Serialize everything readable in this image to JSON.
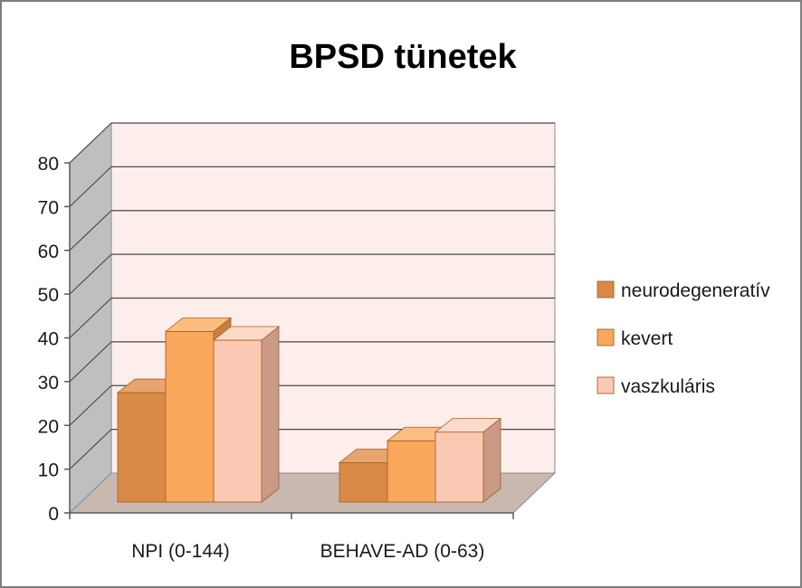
{
  "chart_data": {
    "type": "bar",
    "title": "BPSD tünetek",
    "xlabel": "",
    "ylabel": "",
    "categories": [
      "NPI (0-144)",
      "BEHAVE-AD (0-63)"
    ],
    "series": [
      {
        "name": "neurodegeneratív",
        "values": [
          25,
          9
        ],
        "color": "#d88a46",
        "top_color": "#e9a36c",
        "side_color": "#a9672f"
      },
      {
        "name": "kevert",
        "values": [
          39,
          14
        ],
        "color": "#f9a75b",
        "top_color": "#fcbd80",
        "side_color": "#c8803f"
      },
      {
        "name": "vaszkuláris",
        "values": [
          37,
          16
        ],
        "color": "#fbc9b3",
        "top_color": "#fdd9c9",
        "side_color": "#c99a86"
      }
    ],
    "ylim": [
      0,
      80
    ],
    "yticks": [
      "0",
      "10",
      "20",
      "30",
      "40",
      "50",
      "60",
      "70",
      "80"
    ],
    "grid": true,
    "legend_position": "right",
    "colors": {
      "back_wall": "#fdeeeb",
      "side_wall": "#bfbfbf",
      "floor": "#c9b8b0",
      "grid": "#4a4a4a",
      "axis": "#595959"
    }
  }
}
